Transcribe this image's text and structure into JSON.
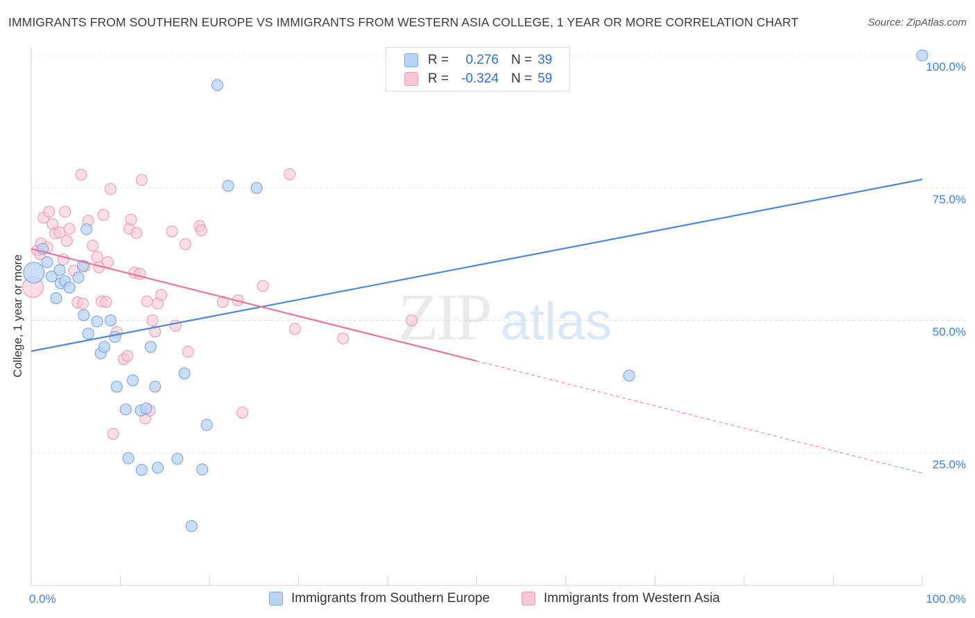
{
  "title": "IMMIGRANTS FROM SOUTHERN EUROPE VS IMMIGRANTS FROM WESTERN ASIA COLLEGE, 1 YEAR OR MORE CORRELATION CHART",
  "source": "Source: ZipAtlas.com",
  "watermark": {
    "zip": "ZIP",
    "atlas": "atlas"
  },
  "legend": {
    "r_label": "R =",
    "n_label": "N =",
    "rows": [
      {
        "r": "0.276",
        "n": "39"
      },
      {
        "r": "-0.324",
        "n": "59"
      }
    ]
  },
  "colors": {
    "blue": "#4a86d8",
    "pink": "#e8729a",
    "blue_fill": "#b9d3f5",
    "pink_fill": "#f9c6d5",
    "axis_text": "#3d7fd6"
  },
  "chart_data": {
    "type": "scatter",
    "title": "IMMIGRANTS FROM SOUTHERN EUROPE VS IMMIGRANTS FROM WESTERN ASIA COLLEGE, 1 YEAR OR MORE CORRELATION CHART",
    "xlabel": "",
    "ylabel": "College, 1 year or more",
    "xlim": [
      0,
      100
    ],
    "ylim": [
      0,
      100
    ],
    "x_tick_labels": [
      "0.0%",
      "100.0%"
    ],
    "y_ticks": [
      25,
      50,
      75,
      100
    ],
    "y_tick_labels": [
      "25.0%",
      "50.0%",
      "75.0%",
      "100.0%"
    ],
    "grid": true,
    "legend_position": "top-center",
    "series": [
      {
        "name": "Immigrants from Southern Europe",
        "color": "#4a86d8",
        "r": 0.276,
        "n": 39,
        "trend": {
          "x": [
            0,
            100
          ],
          "y": [
            44.2,
            76.6
          ],
          "dashed_from": null
        },
        "points": [
          [
            0.3,
            59.0
          ],
          [
            1.3,
            63.5
          ],
          [
            1.8,
            61.0
          ],
          [
            2.3,
            58.3
          ],
          [
            2.8,
            54.2
          ],
          [
            3.3,
            57.0
          ],
          [
            3.8,
            57.4
          ],
          [
            4.3,
            56.2
          ],
          [
            5.3,
            58.1
          ],
          [
            5.8,
            60.3
          ],
          [
            6.2,
            67.2
          ],
          [
            6.4,
            47.5
          ],
          [
            7.4,
            49.8
          ],
          [
            7.8,
            43.8
          ],
          [
            8.2,
            45.0
          ],
          [
            8.9,
            50.0
          ],
          [
            9.4,
            46.9
          ],
          [
            9.6,
            37.5
          ],
          [
            10.6,
            33.2
          ],
          [
            10.9,
            24.0
          ],
          [
            11.4,
            38.7
          ],
          [
            12.3,
            33.0
          ],
          [
            12.4,
            21.8
          ],
          [
            12.9,
            33.4
          ],
          [
            13.4,
            45.0
          ],
          [
            13.9,
            37.5
          ],
          [
            14.2,
            22.2
          ],
          [
            16.4,
            23.9
          ],
          [
            17.2,
            40.0
          ],
          [
            19.2,
            21.9
          ],
          [
            18.0,
            11.2
          ],
          [
            19.7,
            30.3
          ],
          [
            20.9,
            94.4
          ],
          [
            22.1,
            75.4
          ],
          [
            25.3,
            75.0
          ],
          [
            67.1,
            39.6
          ],
          [
            100.0,
            100.0
          ],
          [
            3.2,
            59.5
          ],
          [
            5.9,
            51.0
          ]
        ]
      },
      {
        "name": "Immigrants from Western Asia",
        "color": "#e8729a",
        "r": -0.324,
        "n": 59,
        "trend": {
          "x": [
            0,
            100
          ],
          "y": [
            63.5,
            21.2
          ],
          "dashed_from": 50.0
        },
        "points": [
          [
            0.2,
            56.3
          ],
          [
            0.7,
            63.2
          ],
          [
            1.1,
            64.5
          ],
          [
            1.4,
            69.4
          ],
          [
            1.8,
            63.8
          ],
          [
            2.0,
            70.5
          ],
          [
            2.4,
            68.2
          ],
          [
            2.7,
            66.4
          ],
          [
            3.2,
            66.6
          ],
          [
            3.6,
            61.5
          ],
          [
            3.8,
            70.5
          ],
          [
            4.0,
            65.0
          ],
          [
            4.3,
            67.3
          ],
          [
            4.8,
            59.4
          ],
          [
            5.2,
            53.4
          ],
          [
            5.6,
            77.5
          ],
          [
            5.8,
            53.2
          ],
          [
            6.0,
            60.2
          ],
          [
            6.4,
            68.8
          ],
          [
            6.9,
            64.1
          ],
          [
            7.4,
            62.0
          ],
          [
            7.9,
            53.6
          ],
          [
            8.1,
            69.9
          ],
          [
            8.4,
            53.5
          ],
          [
            8.6,
            61.0
          ],
          [
            8.9,
            74.8
          ],
          [
            9.2,
            28.6
          ],
          [
            9.6,
            47.8
          ],
          [
            10.4,
            42.7
          ],
          [
            10.8,
            43.3
          ],
          [
            11.0,
            67.3
          ],
          [
            11.2,
            69.0
          ],
          [
            11.6,
            59.0
          ],
          [
            11.8,
            66.5
          ],
          [
            12.2,
            58.8
          ],
          [
            12.4,
            76.5
          ],
          [
            12.8,
            31.5
          ],
          [
            13.0,
            53.6
          ],
          [
            13.3,
            33.0
          ],
          [
            13.6,
            50.0
          ],
          [
            13.9,
            47.9
          ],
          [
            14.2,
            53.2
          ],
          [
            14.6,
            54.8
          ],
          [
            15.8,
            66.8
          ],
          [
            16.2,
            49.0
          ],
          [
            17.3,
            64.4
          ],
          [
            17.6,
            44.1
          ],
          [
            18.9,
            67.8
          ],
          [
            19.1,
            67.0
          ],
          [
            21.5,
            53.5
          ],
          [
            23.2,
            53.8
          ],
          [
            23.7,
            32.6
          ],
          [
            26.0,
            56.5
          ],
          [
            29.0,
            77.6
          ],
          [
            29.6,
            48.4
          ],
          [
            35.0,
            46.6
          ],
          [
            42.7,
            50.0
          ],
          [
            1.0,
            62.5
          ],
          [
            7.6,
            60.0
          ]
        ]
      }
    ]
  },
  "bottom_legend": [
    {
      "label": "Immigrants from Southern Europe"
    },
    {
      "label": "Immigrants from Western Asia"
    }
  ]
}
